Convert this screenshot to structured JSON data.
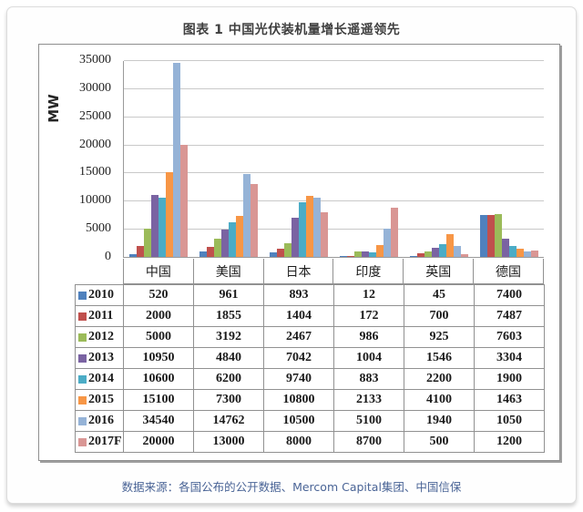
{
  "page": {
    "title": "图表 1 中国光伏装机量增长遥遥领先",
    "footer": "数据来源：各国公布的公开数据、Mercom Capital集团、中国信保"
  },
  "chart_data": {
    "type": "bar",
    "title": "图表 1 中国光伏装机量增长遥遥领先",
    "ylabel": "MW",
    "xlabel": "",
    "ylim": [
      0,
      35000
    ],
    "ytick_step": 5000,
    "grid": true,
    "legend_position": "data-table-left-column",
    "categories": [
      "中国",
      "美国",
      "日本",
      "印度",
      "英国",
      "德国"
    ],
    "series": [
      {
        "name": "2010",
        "color": "#4F81BD",
        "values": [
          520,
          961,
          893,
          12,
          45,
          7400
        ]
      },
      {
        "name": "2011",
        "color": "#C0504D",
        "values": [
          2000,
          1855,
          1404,
          172,
          700,
          7487
        ]
      },
      {
        "name": "2012",
        "color": "#9BBB59",
        "values": [
          5000,
          3192,
          2467,
          986,
          925,
          7603
        ]
      },
      {
        "name": "2013",
        "color": "#7A63A2",
        "values": [
          10950,
          4840,
          7042,
          1004,
          1546,
          3304
        ]
      },
      {
        "name": "2014",
        "color": "#4BACC6",
        "values": [
          10600,
          6200,
          9740,
          883,
          2200,
          1900
        ]
      },
      {
        "name": "2015",
        "color": "#F79646",
        "values": [
          15100,
          7300,
          10800,
          2133,
          4100,
          1463
        ]
      },
      {
        "name": "2016",
        "color": "#95B3D7",
        "values": [
          34540,
          14762,
          10500,
          5100,
          1940,
          1050
        ]
      },
      {
        "name": "2017F",
        "color": "#D99694",
        "values": [
          20000,
          13000,
          8000,
          8700,
          500,
          1200
        ]
      }
    ]
  }
}
